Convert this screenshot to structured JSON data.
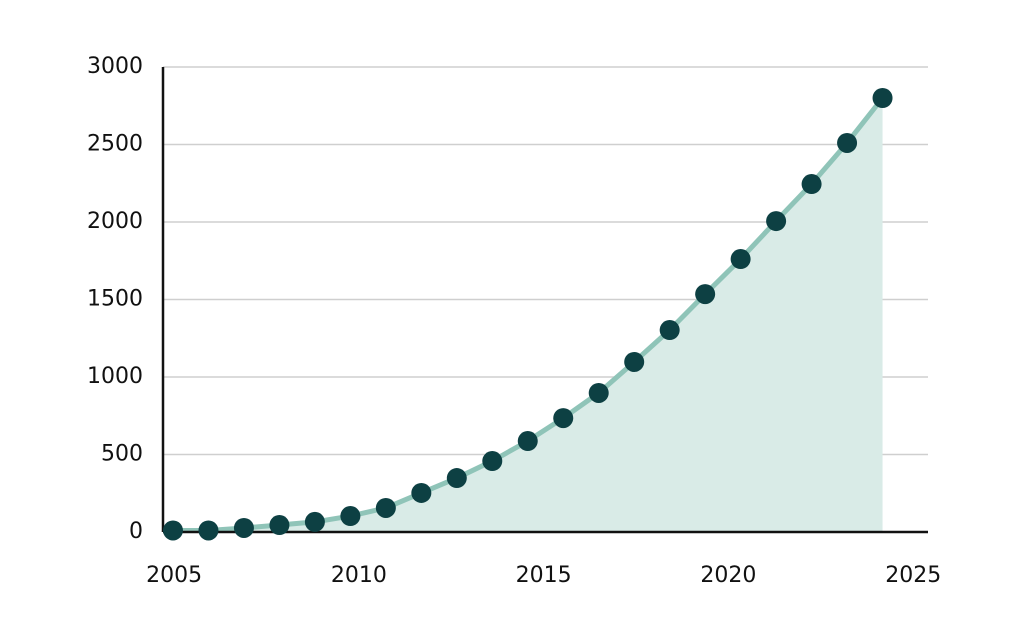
{
  "chart_data": {
    "type": "area",
    "x": [
      2004.97,
      2005.93,
      2006.89,
      2007.85,
      2008.81,
      2009.77,
      2010.73,
      2011.69,
      2012.65,
      2013.61,
      2014.57,
      2015.53,
      2016.49,
      2017.45,
      2018.41,
      2019.37,
      2020.33,
      2021.29,
      2022.25,
      2023.21,
      2024.17
    ],
    "series": [
      {
        "color": "#0d4043",
        "values": [
          10,
          10,
          26,
          45,
          65,
          103,
          155,
          252,
          348,
          458,
          587,
          735,
          897,
          1097,
          1303,
          1535,
          1761,
          2006,
          2245,
          2510,
          2800
        ]
      }
    ],
    "line_color": "#8fc4b8",
    "fill_color": "#d9ebe7",
    "xlim": [
      2004.7,
      2025.4
    ],
    "xticks": [
      2005,
      2010,
      2015,
      2020,
      2025
    ],
    "ylim": [
      0,
      3000
    ],
    "yticks": [
      0,
      500,
      1000,
      1500,
      2000,
      2500,
      3000
    ],
    "grid": true
  }
}
